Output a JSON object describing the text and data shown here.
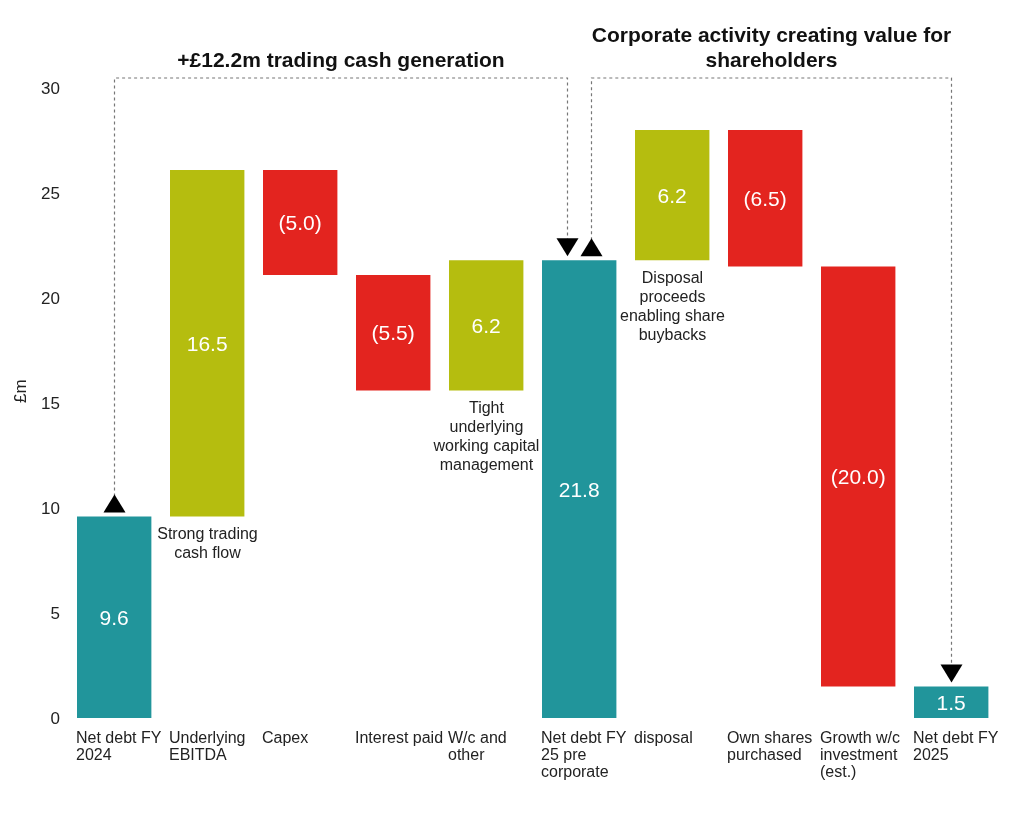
{
  "chart_data": {
    "type": "bar",
    "ylabel": "£m",
    "categories": [
      "Net debt FY 2024",
      "Underlying EBITDA",
      "Capex",
      "Interest paid",
      "W/c and other",
      "Net debt FY 25 pre corporate",
      "disposal",
      "Own shares purchased",
      "Growth w/c investment (est.)",
      "Net debt FY 2025"
    ],
    "values": [
      9.6,
      16.5,
      -5.0,
      -5.5,
      6.2,
      21.8,
      6.2,
      -6.5,
      -20.0,
      1.5
    ],
    "base": [
      0,
      9.6,
      26.1,
      21.1,
      15.6,
      0,
      21.8,
      28.0,
      21.5,
      0
    ],
    "value_labels": [
      "9.6",
      "16.5",
      "(5.0)",
      "(5.5)",
      "6.2",
      "21.8",
      "6.2",
      "(6.5)",
      "(20.0)",
      "1.5"
    ],
    "colors": [
      "#21959b",
      "#b5bd0f",
      "#e3241f",
      "#e3241f",
      "#b5bd0f",
      "#21959b",
      "#b5bd0f",
      "#e3241f",
      "#e3241f",
      "#21959b"
    ],
    "ylim": [
      0,
      30
    ],
    "yticks": [
      0,
      5,
      10,
      15,
      20,
      25,
      30
    ],
    "annotations": [
      "+£12.2m trading cash generation",
      "Corporate activity creating value for shareholders",
      {
        "text": "Strong trading cash flow",
        "x": "Underlying EBITDA",
        "y": 9.6
      },
      {
        "text": "Tight underlying working capital management",
        "x": "W/c and other",
        "y": 15.6
      },
      {
        "text": "Disposal proceeds enabling share buybacks",
        "x": "disposal",
        "y": 21.8
      }
    ]
  }
}
